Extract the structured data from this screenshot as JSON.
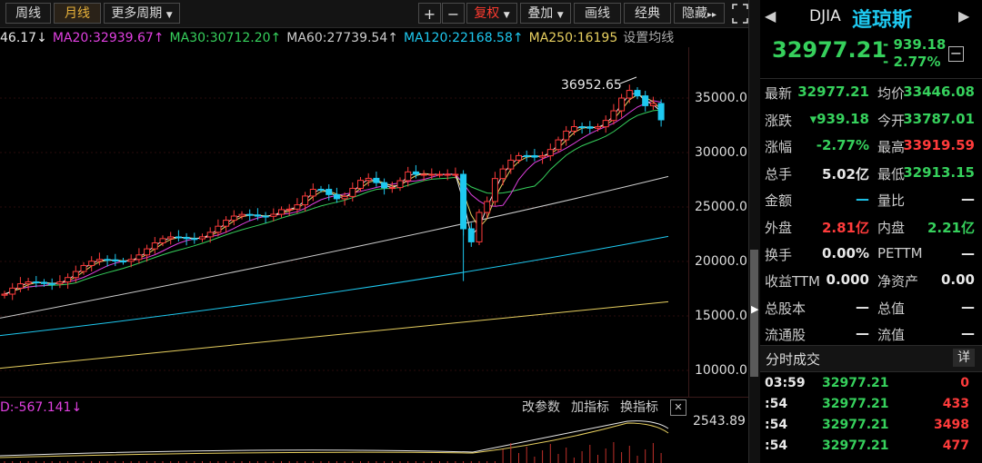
{
  "toolbar": {
    "buttons": [
      "周线",
      "月线",
      "更多周期"
    ],
    "active": "月线",
    "plus": "+",
    "minus": "−",
    "fuquan": "复权",
    "diejia": "叠加",
    "huaxian": "画线",
    "jingdian": "经典",
    "yincang": "隐藏",
    "nav": "▸▸"
  },
  "ma_legend": [
    {
      "text": "46.17↓",
      "color": "#e8e8e8"
    },
    {
      "text": "MA20:32939.67↑",
      "color": "#e040e0"
    },
    {
      "text": "MA30:30712.20↑",
      "color": "#36d05c"
    },
    {
      "text": "MA60:27739.54↑",
      "color": "#cccccc"
    },
    {
      "text": "MA120:22168.58↑",
      "color": "#1ec9f0"
    },
    {
      "text": "MA250:16195",
      "color": "#e8d060"
    },
    {
      "text": "设置均线",
      "color": "#aaaaaa"
    }
  ],
  "price_axis": [
    "35000.0",
    "30000.0",
    "25000.0",
    "20000.0",
    "15000.0",
    "10000.0"
  ],
  "peak_label": "36952.65",
  "sub": {
    "left_label": "D:-567.141↓",
    "gaicanshu": "改参数",
    "jiazhibiao": "加指标",
    "huanzhibiao": "换指标",
    "close": "✕",
    "axis_value": "2543.89"
  },
  "stock": {
    "code": "DJIA",
    "name": "道琼斯",
    "price": "32977.21",
    "change": "- 939.18",
    "change_pct": "- 2.77%",
    "minus_btn": "−"
  },
  "quote_rows": [
    [
      {
        "l": "最新",
        "v": "32977.21",
        "c": "g"
      },
      {
        "l": "均价",
        "v": "33446.08",
        "c": "g"
      }
    ],
    [
      {
        "l": "涨跌",
        "v": "▾939.18",
        "c": "g"
      },
      {
        "l": "今开",
        "v": "33787.01",
        "c": "g"
      }
    ],
    [
      {
        "l": "涨幅",
        "v": "-2.77%",
        "c": "g"
      },
      {
        "l": "最高",
        "v": "33919.59",
        "c": "r"
      }
    ],
    [
      {
        "l": "总手",
        "v": "5.02亿",
        "c": "w"
      },
      {
        "l": "最低",
        "v": "32913.15",
        "c": "g"
      }
    ],
    [
      {
        "l": "金额",
        "v": "—",
        "c": "c"
      },
      {
        "l": "量比",
        "v": "—",
        "c": "w"
      }
    ],
    [
      {
        "l": "外盘",
        "v": "2.81亿",
        "c": "r"
      },
      {
        "l": "内盘",
        "v": "2.21亿",
        "c": "g"
      }
    ],
    [
      {
        "l": "换手",
        "v": "0.00%",
        "c": "w"
      },
      {
        "l": "PETTM",
        "v": "—",
        "c": "w"
      }
    ],
    [
      {
        "l": "收益TTM",
        "v": "0.000",
        "c": "w"
      },
      {
        "l": "净资产",
        "v": "0.00",
        "c": "w"
      }
    ],
    [
      {
        "l": "总股本",
        "v": "—",
        "c": "w"
      },
      {
        "l": "总值",
        "v": "—",
        "c": "w"
      }
    ],
    [
      {
        "l": "流通股",
        "v": "—",
        "c": "w"
      },
      {
        "l": "流值",
        "v": "—",
        "c": "w"
      }
    ]
  ],
  "ticks": {
    "title": "分时成交",
    "detail": "详",
    "rows": [
      {
        "t": "03:59",
        "p": "32977.21",
        "v": "0",
        "vc": "r"
      },
      {
        "t": ":54",
        "p": "32977.21",
        "v": "433",
        "vc": "r"
      },
      {
        "t": ":54",
        "p": "32977.21",
        "v": "3498",
        "vc": "r"
      },
      {
        "t": ":54",
        "p": "32977.21",
        "v": "477",
        "vc": "r"
      }
    ]
  }
}
